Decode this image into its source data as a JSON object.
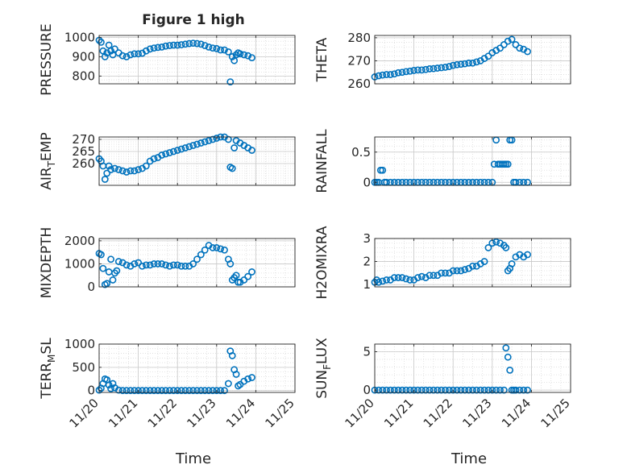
{
  "figure": {
    "title": "Figure 1 high",
    "xlabel": "Time"
  },
  "colors": {
    "marker": "#0072bd",
    "grid": "#c8c8c8",
    "axis": "#262626"
  },
  "chart_data": [
    {
      "type": "scatter",
      "ylabel": "PRESSURE",
      "xlim": [
        0,
        5
      ],
      "ylim": [
        760,
        1010
      ],
      "yticks": [
        800,
        900,
        1000
      ],
      "xticklabels": [],
      "grid": true,
      "x": [
        0.0,
        0.05,
        0.1,
        0.15,
        0.2,
        0.25,
        0.3,
        0.35,
        0.4,
        0.5,
        0.6,
        0.7,
        0.8,
        0.9,
        1.0,
        1.1,
        1.2,
        1.3,
        1.4,
        1.5,
        1.6,
        1.7,
        1.8,
        1.9,
        2.0,
        2.1,
        2.2,
        2.3,
        2.4,
        2.5,
        2.6,
        2.7,
        2.8,
        2.9,
        3.0,
        3.1,
        3.2,
        3.3,
        3.35,
        3.4,
        3.45,
        3.5,
        3.55,
        3.6,
        3.7,
        3.8,
        3.9
      ],
      "y": [
        985,
        975,
        930,
        900,
        920,
        960,
        930,
        910,
        940,
        920,
        905,
        900,
        910,
        915,
        915,
        918,
        930,
        940,
        945,
        948,
        950,
        955,
        958,
        960,
        960,
        962,
        965,
        968,
        970,
        968,
        965,
        958,
        950,
        945,
        942,
        935,
        935,
        925,
        770,
        900,
        880,
        910,
        920,
        915,
        910,
        905,
        895
      ]
    },
    {
      "type": "scatter",
      "ylabel": "THETA",
      "xlim": [
        0,
        5
      ],
      "ylim": [
        260,
        281
      ],
      "yticks": [
        260,
        270,
        280
      ],
      "xticklabels": [],
      "grid": true,
      "x": [
        0.0,
        0.1,
        0.2,
        0.3,
        0.4,
        0.5,
        0.6,
        0.7,
        0.8,
        0.9,
        1.0,
        1.1,
        1.2,
        1.3,
        1.4,
        1.5,
        1.6,
        1.7,
        1.8,
        1.9,
        2.0,
        2.1,
        2.2,
        2.3,
        2.4,
        2.5,
        2.6,
        2.7,
        2.8,
        2.9,
        3.0,
        3.1,
        3.2,
        3.3,
        3.4,
        3.5,
        3.6,
        3.7,
        3.8,
        3.9
      ],
      "y": [
        263,
        263.5,
        263.8,
        264,
        264,
        264.3,
        264.8,
        265,
        265.3,
        265.5,
        265.8,
        266,
        266,
        266.2,
        266.5,
        266.6,
        266.8,
        267,
        267.2,
        267.5,
        268,
        268.3,
        268.5,
        268.7,
        269,
        269,
        269.5,
        270,
        271,
        272,
        273.5,
        274.5,
        275.5,
        277,
        278.5,
        279.3,
        277,
        275.5,
        275,
        274
      ]
    },
    {
      "type": "scatter",
      "ylabel": "AIR_TEMP",
      "xlim": [
        0,
        5
      ],
      "ylim": [
        251,
        271
      ],
      "yticks": [
        260,
        265,
        270
      ],
      "xticklabels": [],
      "grid": true,
      "x": [
        0.0,
        0.05,
        0.1,
        0.15,
        0.2,
        0.25,
        0.3,
        0.4,
        0.5,
        0.6,
        0.7,
        0.8,
        0.9,
        1.0,
        1.1,
        1.2,
        1.3,
        1.4,
        1.5,
        1.6,
        1.7,
        1.8,
        1.9,
        2.0,
        2.1,
        2.2,
        2.3,
        2.4,
        2.5,
        2.6,
        2.7,
        2.8,
        2.9,
        3.0,
        3.1,
        3.2,
        3.3,
        3.35,
        3.4,
        3.45,
        3.5,
        3.6,
        3.7,
        3.8,
        3.9
      ],
      "y": [
        262,
        261,
        259,
        253.5,
        256,
        259,
        257.5,
        258,
        257.5,
        257,
        256.5,
        257,
        257,
        257.5,
        258,
        259,
        261,
        262,
        262.5,
        263.5,
        264,
        264.5,
        265,
        265.5,
        266,
        266.5,
        267,
        267.5,
        268,
        268.5,
        269,
        269.5,
        270,
        270.5,
        271,
        271,
        270,
        258.5,
        258,
        266.5,
        269.5,
        268.5,
        267.5,
        266.5,
        265.5
      ]
    },
    {
      "type": "scatter",
      "ylabel": "RAINFALL",
      "xlim": [
        0,
        5
      ],
      "ylim": [
        -0.05,
        0.75
      ],
      "yticks": [
        0,
        0.5
      ],
      "xticklabels": [],
      "grid": true,
      "x": [
        0.0,
        0.05,
        0.1,
        0.15,
        0.2,
        0.25,
        0.3,
        0.4,
        0.5,
        0.6,
        0.7,
        0.8,
        0.9,
        1.0,
        1.1,
        1.2,
        1.3,
        1.4,
        1.5,
        1.6,
        1.7,
        1.8,
        1.9,
        2.0,
        2.1,
        2.2,
        2.3,
        2.4,
        2.5,
        2.6,
        2.7,
        2.8,
        2.9,
        3.0,
        3.05,
        3.1,
        3.15,
        3.2,
        3.25,
        3.3,
        3.35,
        3.4,
        3.45,
        3.5,
        3.55,
        3.6,
        3.7,
        3.8,
        3.9
      ],
      "y": [
        0,
        0,
        0,
        0.2,
        0.2,
        0,
        0,
        0,
        0,
        0,
        0,
        0,
        0,
        0,
        0,
        0,
        0,
        0,
        0,
        0,
        0,
        0,
        0,
        0,
        0,
        0,
        0,
        0,
        0,
        0,
        0,
        0,
        0,
        0,
        0.3,
        0.7,
        0.3,
        0.3,
        0.3,
        0.3,
        0.3,
        0.3,
        0.7,
        0.7,
        0,
        0,
        0,
        0,
        0
      ]
    },
    {
      "type": "scatter",
      "ylabel": "MIXDEPTH",
      "xlim": [
        0,
        5
      ],
      "ylim": [
        0,
        2100
      ],
      "yticks": [
        0,
        1000,
        2000
      ],
      "xticklabels": [],
      "grid": true,
      "x": [
        0.0,
        0.05,
        0.1,
        0.15,
        0.2,
        0.25,
        0.3,
        0.35,
        0.4,
        0.45,
        0.5,
        0.6,
        0.7,
        0.8,
        0.9,
        1.0,
        1.1,
        1.2,
        1.3,
        1.4,
        1.5,
        1.6,
        1.7,
        1.8,
        1.9,
        2.0,
        2.1,
        2.2,
        2.3,
        2.4,
        2.5,
        2.6,
        2.7,
        2.8,
        2.9,
        3.0,
        3.1,
        3.2,
        3.3,
        3.35,
        3.4,
        3.45,
        3.5,
        3.55,
        3.6,
        3.7,
        3.8,
        3.9
      ],
      "y": [
        1450,
        1400,
        800,
        100,
        150,
        650,
        1200,
        300,
        600,
        700,
        1100,
        1050,
        950,
        900,
        1000,
        1050,
        900,
        950,
        950,
        1000,
        1000,
        1000,
        950,
        900,
        950,
        950,
        900,
        900,
        900,
        1000,
        1200,
        1400,
        1600,
        1800,
        1700,
        1700,
        1650,
        1600,
        1200,
        1000,
        300,
        400,
        500,
        200,
        200,
        300,
        450,
        650
      ]
    },
    {
      "type": "scatter",
      "ylabel": "H2OMIXRA",
      "xlim": [
        0,
        5
      ],
      "ylim": [
        0.9,
        3.0
      ],
      "yticks": [
        1,
        2,
        3
      ],
      "xticklabels": [],
      "grid": true,
      "x": [
        0.0,
        0.05,
        0.1,
        0.2,
        0.3,
        0.4,
        0.5,
        0.6,
        0.7,
        0.8,
        0.9,
        1.0,
        1.1,
        1.2,
        1.3,
        1.4,
        1.5,
        1.6,
        1.7,
        1.8,
        1.9,
        2.0,
        2.1,
        2.2,
        2.3,
        2.4,
        2.5,
        2.6,
        2.7,
        2.8,
        2.9,
        3.0,
        3.1,
        3.2,
        3.3,
        3.35,
        3.4,
        3.45,
        3.5,
        3.6,
        3.7,
        3.8,
        3.9
      ],
      "y": [
        1.1,
        1.2,
        1.1,
        1.15,
        1.2,
        1.2,
        1.3,
        1.3,
        1.3,
        1.25,
        1.2,
        1.2,
        1.3,
        1.35,
        1.3,
        1.4,
        1.4,
        1.4,
        1.5,
        1.5,
        1.5,
        1.6,
        1.6,
        1.6,
        1.65,
        1.7,
        1.8,
        1.8,
        1.9,
        2.0,
        2.6,
        2.8,
        2.85,
        2.8,
        2.7,
        2.6,
        1.6,
        1.7,
        1.9,
        2.2,
        2.3,
        2.2,
        2.3
      ]
    },
    {
      "type": "scatter",
      "ylabel": "TERR_MSL",
      "xlim": [
        0,
        5
      ],
      "ylim": [
        -40,
        1000
      ],
      "yticks": [
        0,
        500,
        1000
      ],
      "xticklabels": [
        "11/20",
        "11/21",
        "11/22",
        "11/23",
        "11/24",
        "11/25"
      ],
      "grid": true,
      "x": [
        0.0,
        0.05,
        0.1,
        0.15,
        0.2,
        0.25,
        0.3,
        0.35,
        0.4,
        0.5,
        0.6,
        0.7,
        0.8,
        0.9,
        1.0,
        1.1,
        1.2,
        1.3,
        1.4,
        1.5,
        1.6,
        1.7,
        1.8,
        1.9,
        2.0,
        2.1,
        2.2,
        2.3,
        2.4,
        2.5,
        2.6,
        2.7,
        2.8,
        2.9,
        3.0,
        3.1,
        3.2,
        3.3,
        3.35,
        3.4,
        3.45,
        3.5,
        3.55,
        3.6,
        3.7,
        3.8,
        3.9
      ],
      "y": [
        10,
        50,
        150,
        250,
        230,
        120,
        40,
        150,
        60,
        10,
        0,
        0,
        0,
        0,
        0,
        0,
        0,
        0,
        0,
        0,
        0,
        0,
        0,
        0,
        0,
        0,
        0,
        0,
        0,
        0,
        0,
        0,
        0,
        0,
        0,
        0,
        0,
        150,
        850,
        750,
        450,
        350,
        100,
        130,
        200,
        250,
        280
      ]
    },
    {
      "type": "scatter",
      "ylabel": "SUN_FLUX",
      "xlim": [
        0,
        5
      ],
      "ylim": [
        -0.3,
        6
      ],
      "yticks": [
        0,
        5
      ],
      "xticklabels": [
        "11/20",
        "11/21",
        "11/22",
        "11/23",
        "11/24",
        "11/25"
      ],
      "grid": true,
      "x": [
        0.0,
        0.1,
        0.2,
        0.3,
        0.4,
        0.5,
        0.6,
        0.7,
        0.8,
        0.9,
        1.0,
        1.1,
        1.2,
        1.3,
        1.4,
        1.5,
        1.6,
        1.7,
        1.8,
        1.9,
        2.0,
        2.1,
        2.2,
        2.3,
        2.4,
        2.5,
        2.6,
        2.7,
        2.8,
        2.9,
        3.0,
        3.1,
        3.2,
        3.3,
        3.35,
        3.4,
        3.45,
        3.5,
        3.55,
        3.6,
        3.7,
        3.8,
        3.9
      ],
      "y": [
        0,
        0,
        0,
        0,
        0,
        0,
        0,
        0,
        0,
        0,
        0,
        0,
        0,
        0,
        0,
        0,
        0,
        0,
        0,
        0,
        0,
        0,
        0,
        0,
        0,
        0,
        0,
        0,
        0,
        0,
        0,
        0,
        0,
        0,
        5.5,
        4.3,
        2.6,
        0,
        0,
        0,
        0,
        0,
        0
      ]
    }
  ]
}
